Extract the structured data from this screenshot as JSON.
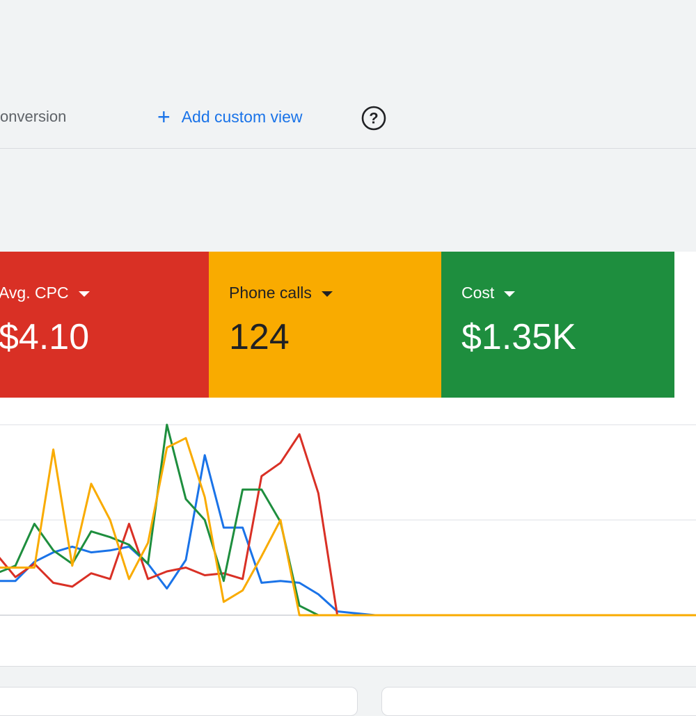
{
  "header": {
    "view_tab_partial": "onversion",
    "add_custom_view_label": "Add custom view",
    "add_icon": "plus-icon",
    "help_icon": "help-circle-icon"
  },
  "scorecards": [
    {
      "label": "Avg. CPC",
      "value": "$4.10",
      "color": "#d93025"
    },
    {
      "label": "Phone calls",
      "value": "124",
      "color": "#f9ab00"
    },
    {
      "label": "Cost",
      "value": "$1.35K",
      "color": "#1e8e3e"
    }
  ],
  "chart_data": {
    "type": "line",
    "x": [
      0,
      1,
      2,
      3,
      4,
      5,
      6,
      7,
      8,
      9,
      10,
      11,
      12,
      13,
      14,
      15,
      16,
      17,
      18,
      19,
      20,
      21,
      22,
      23,
      24,
      25,
      26,
      27,
      28,
      29,
      30,
      31,
      32,
      33,
      34,
      35,
      36,
      37,
      38
    ],
    "ylim": [
      0,
      100
    ],
    "grid": true,
    "series": [
      {
        "color": "#1a73e8",
        "values": [
          18,
          18,
          28,
          33,
          36,
          33,
          34,
          36,
          27,
          14,
          29,
          84,
          46,
          46,
          17,
          18,
          17,
          11,
          2,
          1,
          0,
          0,
          0,
          0,
          0,
          0,
          0,
          0,
          0,
          0,
          0,
          0,
          0,
          0,
          0,
          0,
          0,
          0,
          0
        ]
      },
      {
        "color": "#d93025",
        "values": [
          32,
          20,
          27,
          17,
          15,
          22,
          19,
          48,
          19,
          23,
          25,
          21,
          22,
          19,
          73,
          80,
          95,
          64,
          0,
          0,
          0,
          0,
          0,
          0,
          0,
          0,
          0,
          0,
          0,
          0,
          0,
          0,
          0,
          0,
          0,
          0,
          0,
          0,
          0
        ]
      },
      {
        "color": "#1e8e3e",
        "values": [
          22,
          26,
          48,
          34,
          27,
          44,
          41,
          37,
          27,
          100,
          61,
          50,
          18,
          66,
          66,
          49,
          5,
          0,
          0,
          0,
          0,
          0,
          0,
          0,
          0,
          0,
          0,
          0,
          0,
          0,
          0,
          0,
          0,
          0,
          0,
          0,
          0,
          0,
          0
        ]
      },
      {
        "color": "#f9ab00",
        "values": [
          25,
          25,
          25,
          87,
          26,
          69,
          50,
          19,
          38,
          88,
          93,
          62,
          7,
          13,
          31,
          50,
          0,
          0,
          0,
          0,
          0,
          0,
          0,
          0,
          0,
          0,
          0,
          0,
          0,
          0,
          0,
          0,
          0,
          0,
          0,
          0,
          0,
          0,
          0
        ]
      }
    ]
  }
}
